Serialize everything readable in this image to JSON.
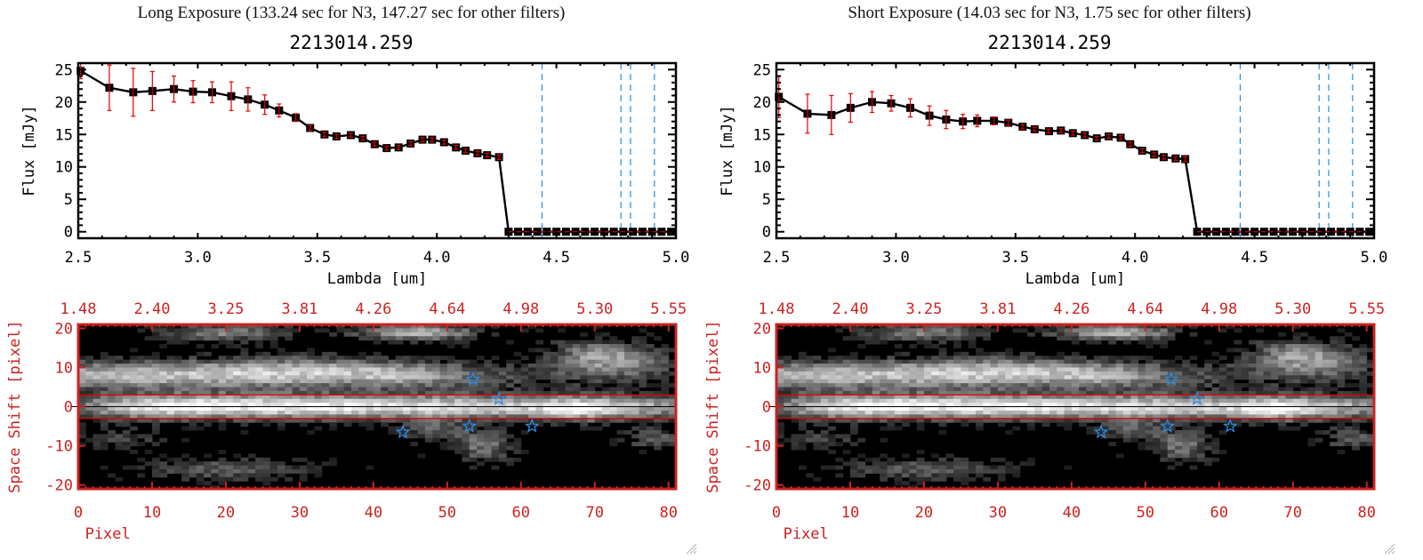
{
  "panels": [
    {
      "id": "long",
      "exposure_title": "Long Exposure (133.24 sec for N3, 147.27 sec for other filters)",
      "object_title": "2213014.259"
    },
    {
      "id": "short",
      "exposure_title": "Short Exposure (14.03 sec for N3, 1.75 sec for other filters)",
      "object_title": "2213014.259"
    }
  ],
  "chart_data": [
    {
      "type": "line",
      "panel": "long",
      "title": "2213014.259",
      "xlabel": "Lambda [um]",
      "ylabel": "Flux [mJy]",
      "xlim": [
        2.5,
        5.0
      ],
      "ylim": [
        -1,
        26
      ],
      "xticks": [
        "2.5",
        "3.0",
        "3.5",
        "4.0",
        "4.5",
        "5.0"
      ],
      "xtick_values": [
        2.5,
        3.0,
        3.5,
        4.0,
        4.5,
        5.0
      ],
      "yticks": [
        "0",
        "5",
        "10",
        "15",
        "20",
        "25"
      ],
      "ytick_values": [
        0,
        5,
        10,
        15,
        20,
        25
      ],
      "vlines": [
        4.44,
        4.77,
        4.81,
        4.91
      ],
      "hline": 0,
      "x": [
        2.51,
        2.63,
        2.73,
        2.81,
        2.9,
        2.98,
        3.06,
        3.14,
        3.21,
        3.28,
        3.34,
        3.41,
        3.47,
        3.53,
        3.58,
        3.64,
        3.69,
        3.74,
        3.79,
        3.84,
        3.89,
        3.94,
        3.98,
        4.03,
        4.08,
        4.12,
        4.17,
        4.21,
        4.26,
        4.3,
        4.34,
        4.38,
        4.42,
        4.46,
        4.5,
        4.54,
        4.58,
        4.62,
        4.66,
        4.7,
        4.74,
        4.78,
        4.82,
        4.86,
        4.9,
        4.94,
        4.98
      ],
      "y": [
        24.8,
        22.2,
        21.5,
        21.7,
        22.0,
        21.6,
        21.5,
        20.9,
        20.4,
        19.6,
        18.7,
        17.6,
        16.0,
        15.0,
        14.7,
        14.9,
        14.4,
        13.5,
        12.9,
        13.0,
        13.6,
        14.2,
        14.2,
        13.8,
        13.0,
        12.5,
        12.1,
        11.8,
        11.5,
        0,
        0,
        0,
        0,
        0,
        0,
        0,
        0,
        0,
        0,
        0,
        0,
        0,
        0,
        0,
        0,
        0,
        0
      ],
      "yerr": [
        1.2,
        3.5,
        3.7,
        3.0,
        2.0,
        1.7,
        1.6,
        2.2,
        1.8,
        1.5,
        1.0,
        0.6,
        0.4,
        0.35,
        0.3,
        0.3,
        0.3,
        0.3,
        0.3,
        0.3,
        0.3,
        0.3,
        0.3,
        0.3,
        0.3,
        0.3,
        0.3,
        0.3,
        0.35,
        0,
        0,
        0,
        0,
        0,
        0,
        0,
        0,
        0,
        0,
        0,
        0,
        0,
        0,
        0,
        0,
        0,
        0
      ]
    },
    {
      "type": "heatmap",
      "panel": "long",
      "xlabel": "Pixel",
      "ylabel": "Space Shift [pixel]",
      "xlim": [
        0,
        81
      ],
      "ylim": [
        -21,
        21
      ],
      "xticks": [
        "0",
        "10",
        "20",
        "30",
        "40",
        "50",
        "60",
        "70",
        "80"
      ],
      "xtick_values": [
        0,
        10,
        20,
        30,
        40,
        50,
        60,
        70,
        80
      ],
      "yticks": [
        "20",
        "10",
        "0",
        "-10",
        "-20"
      ],
      "ytick_values": [
        20,
        10,
        0,
        -10,
        -20
      ],
      "top_xticks": [
        "1.48",
        "2.40",
        "3.25",
        "3.81",
        "4.26",
        "4.64",
        "4.98",
        "5.30",
        "5.55"
      ],
      "aperture_lines": [
        3,
        -3
      ],
      "center_line": 0,
      "stars": [
        [
          53.5,
          7
        ],
        [
          57,
          2
        ],
        [
          44,
          -6.5
        ],
        [
          53,
          -5
        ],
        [
          61.5,
          -5
        ]
      ]
    },
    {
      "type": "line",
      "panel": "short",
      "title": "2213014.259",
      "xlabel": "Lambda [um]",
      "ylabel": "Flux [mJy]",
      "xlim": [
        2.5,
        5.0
      ],
      "ylim": [
        -1,
        26
      ],
      "xticks": [
        "2.5",
        "3.0",
        "3.5",
        "4.0",
        "4.5",
        "5.0"
      ],
      "xtick_values": [
        2.5,
        3.0,
        3.5,
        4.0,
        4.5,
        5.0
      ],
      "yticks": [
        "0",
        "5",
        "10",
        "15",
        "20",
        "25"
      ],
      "ytick_values": [
        0,
        5,
        10,
        15,
        20,
        25
      ],
      "vlines": [
        4.44,
        4.77,
        4.81,
        4.91
      ],
      "hline": 0,
      "x": [
        2.51,
        2.63,
        2.73,
        2.81,
        2.9,
        2.98,
        3.06,
        3.14,
        3.21,
        3.28,
        3.34,
        3.41,
        3.47,
        3.53,
        3.58,
        3.64,
        3.69,
        3.74,
        3.79,
        3.84,
        3.89,
        3.94,
        3.98,
        4.03,
        4.08,
        4.12,
        4.17,
        4.21,
        4.26,
        4.3,
        4.34,
        4.38,
        4.42,
        4.46,
        4.5,
        4.54,
        4.58,
        4.62,
        4.66,
        4.7,
        4.74,
        4.78,
        4.82,
        4.86,
        4.9,
        4.94,
        4.98
      ],
      "y": [
        20.8,
        18.2,
        18.0,
        19.1,
        20.0,
        19.8,
        19.1,
        17.9,
        17.3,
        17.0,
        17.1,
        17.1,
        16.8,
        16.2,
        15.8,
        15.5,
        15.6,
        15.2,
        14.9,
        14.4,
        14.7,
        14.5,
        13.5,
        12.5,
        11.9,
        11.5,
        11.3,
        11.2,
        0,
        0,
        0,
        0,
        0,
        0,
        0,
        0,
        0,
        0,
        0,
        0,
        0,
        0,
        0,
        0,
        0,
        0,
        0
      ],
      "yerr": [
        3.2,
        3.0,
        3.0,
        2.2,
        1.6,
        1.2,
        1.4,
        1.5,
        1.4,
        1.1,
        0.9,
        0.6,
        0.4,
        0.35,
        0.3,
        0.3,
        0.3,
        0.3,
        0.3,
        0.3,
        0.3,
        0.3,
        0.3,
        0.3,
        0.3,
        0.3,
        0.3,
        0.35,
        0,
        0,
        0,
        0,
        0,
        0,
        0,
        0,
        0,
        0,
        0,
        0,
        0,
        0,
        0,
        0,
        0,
        0,
        0
      ]
    },
    {
      "type": "heatmap",
      "panel": "short",
      "xlabel": "Pixel",
      "ylabel": "Space Shift [pixel]",
      "xlim": [
        0,
        81
      ],
      "ylim": [
        -21,
        21
      ],
      "xticks": [
        "0",
        "10",
        "20",
        "30",
        "40",
        "50",
        "60",
        "70",
        "80"
      ],
      "xtick_values": [
        0,
        10,
        20,
        30,
        40,
        50,
        60,
        70,
        80
      ],
      "yticks": [
        "20",
        "10",
        "0",
        "-10",
        "-20"
      ],
      "ytick_values": [
        20,
        10,
        0,
        -10,
        -20
      ],
      "top_xticks": [
        "1.48",
        "2.40",
        "3.25",
        "3.81",
        "4.26",
        "4.64",
        "4.98",
        "5.30",
        "5.55"
      ],
      "aperture_lines": [
        3,
        -3
      ],
      "center_line": 0,
      "stars": [
        [
          53.5,
          7
        ],
        [
          57,
          2
        ],
        [
          44,
          -6.5
        ],
        [
          53,
          -5
        ],
        [
          61.5,
          -5
        ]
      ]
    }
  ],
  "colors": {
    "spectrum_line": "#000000",
    "error_bar": "#e00000",
    "vline": "#1e8fe6",
    "zero_line": "#e00000",
    "image_axis": "#cc2222",
    "aperture": "#e00000",
    "star": "#2a8de6"
  }
}
